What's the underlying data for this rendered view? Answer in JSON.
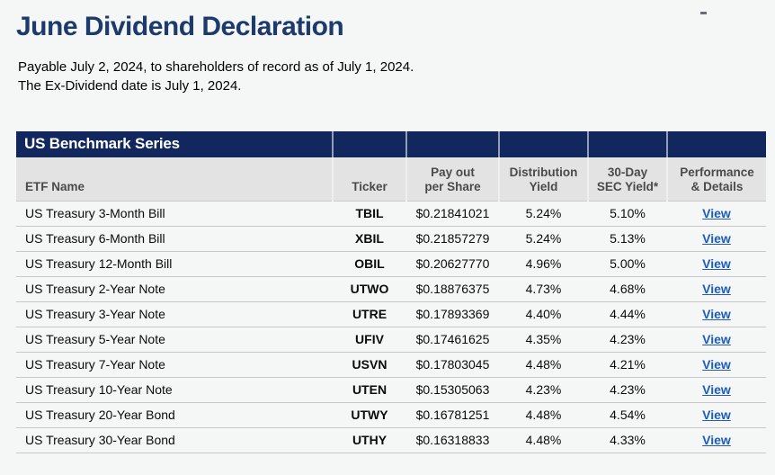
{
  "colors": {
    "navy_band": "#12275e",
    "title_navy": "#1d3a6d",
    "link_blue": "#1b5cbe",
    "subheader_bg": "#e3e3e4",
    "subheader_text": "#4a4a4a",
    "page_bg": "#f5f6f6",
    "row_divider": "#c9c9cb"
  },
  "header": {
    "title": "June Dividend Declaration",
    "subtitle_line1": "Payable July 2, 2024, to shareholders of record as of July 1, 2024.",
    "subtitle_line2": "The Ex-Dividend date is July 1, 2024."
  },
  "table": {
    "section_title": "US Benchmark Series",
    "columns": {
      "etf_name": "ETF Name",
      "ticker": "Ticker",
      "payout_line1": "Pay out",
      "payout_line2": "per Share",
      "dist_line1": "Distribution",
      "dist_line2": "Yield",
      "sec_line1": "30-Day",
      "sec_line2": "SEC Yield*",
      "perf_line1": "Performance",
      "perf_line2": "& Details"
    },
    "rows": [
      {
        "name": "US Treasury 3-Month Bill",
        "ticker": "TBIL",
        "payout": "$0.21841021",
        "distribution_yield": "5.24%",
        "sec_yield": "5.10%",
        "link": "View"
      },
      {
        "name": "US Treasury 6-Month Bill",
        "ticker": "XBIL",
        "payout": "$0.21857279",
        "distribution_yield": "5.24%",
        "sec_yield": "5.13%",
        "link": "View"
      },
      {
        "name": "US Treasury 12-Month Bill",
        "ticker": "OBIL",
        "payout": "$0.20627770",
        "distribution_yield": "4.96%",
        "sec_yield": "5.00%",
        "link": "View"
      },
      {
        "name": "US Treasury 2-Year Note",
        "ticker": "UTWO",
        "payout": "$0.18876375",
        "distribution_yield": "4.73%",
        "sec_yield": "4.68%",
        "link": "View"
      },
      {
        "name": "US Treasury 3-Year Note",
        "ticker": "UTRE",
        "payout": "$0.17893369",
        "distribution_yield": "4.40%",
        "sec_yield": "4.44%",
        "link": "View"
      },
      {
        "name": "US Treasury 5-Year Note",
        "ticker": "UFIV",
        "payout": "$0.17461625",
        "distribution_yield": "4.35%",
        "sec_yield": "4.23%",
        "link": "View"
      },
      {
        "name": "US Treasury 7-Year Note",
        "ticker": "USVN",
        "payout": "$0.17803045",
        "distribution_yield": "4.48%",
        "sec_yield": "4.21%",
        "link": "View"
      },
      {
        "name": "US Treasury 10-Year Note",
        "ticker": "UTEN",
        "payout": "$0.15305063",
        "distribution_yield": "4.23%",
        "sec_yield": "4.23%",
        "link": "View"
      },
      {
        "name": "US Treasury 20-Year Bond",
        "ticker": "UTWY",
        "payout": "$0.16781251",
        "distribution_yield": "4.48%",
        "sec_yield": "4.54%",
        "link": "View"
      },
      {
        "name": "US Treasury 30-Year Bond",
        "ticker": "UTHY",
        "payout": "$0.16318833",
        "distribution_yield": "4.48%",
        "sec_yield": "4.33%",
        "link": "View"
      }
    ]
  }
}
